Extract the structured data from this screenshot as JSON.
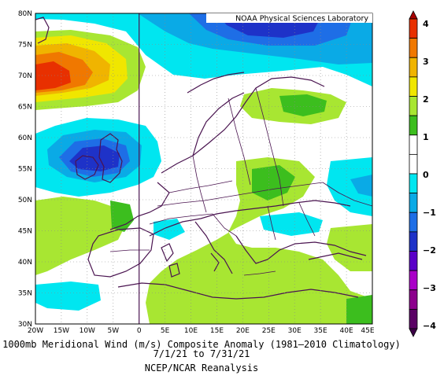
{
  "map": {
    "title_box": "NOAA Physical Sciences Laboratory",
    "lat_labels": [
      "80N",
      "75N",
      "70N",
      "65N",
      "60N",
      "55N",
      "50N",
      "45N",
      "40N",
      "35N",
      "30N"
    ],
    "lon_labels": [
      "20W",
      "15W",
      "10W",
      "5W",
      "0",
      "5E",
      "10E",
      "15E",
      "20E",
      "25E",
      "30E",
      "35E",
      "40E",
      "45E"
    ],
    "caption_line1": "1000mb Meridional Wind (m/s) Composite Anomaly (1981–2010 Climatology)",
    "caption_line2": "7/1/21 to 7/31/21",
    "caption_line3": "NCEP/NCAR Reanalysis"
  },
  "colorbar": {
    "labels": [
      "4",
      "3",
      "2",
      "1",
      "0",
      "−1",
      "−2",
      "−3",
      "−4"
    ],
    "colors": [
      "#a80000",
      "#e83000",
      "#f07800",
      "#f0b400",
      "#f0e600",
      "#a8e632",
      "#3cbe1e",
      "#ffffff",
      "#ffffff",
      "#00e6f0",
      "#0aaae6",
      "#1e6ee6",
      "#1e32c8",
      "#5a00c8",
      "#aa00c8",
      "#8c008c",
      "#5a0064",
      "#3c0046"
    ]
  }
}
